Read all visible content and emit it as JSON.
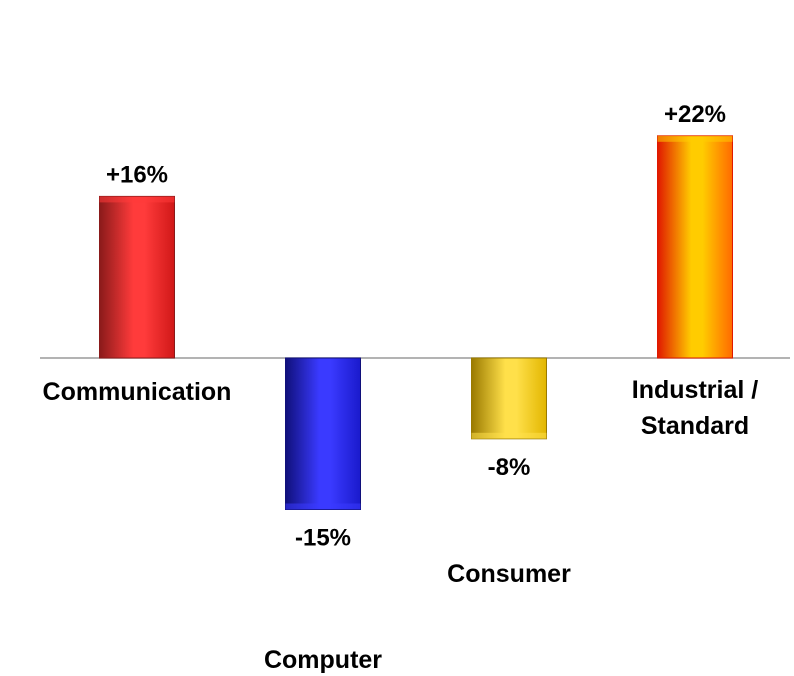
{
  "chart_data": {
    "type": "bar",
    "title": "",
    "xlabel": "",
    "ylabel": "",
    "grid": false,
    "legend": "none",
    "categories": [
      {
        "name": "Communication",
        "lines": [
          "Communication"
        ]
      },
      {
        "name": "Computer",
        "lines": [
          "Computer"
        ]
      },
      {
        "name": "Consumer",
        "lines": [
          "Consumer"
        ]
      },
      {
        "name": "Industrial / Standard",
        "lines": [
          "Industrial /",
          "Standard"
        ]
      }
    ],
    "values": [
      16,
      -15,
      -8,
      22
    ],
    "data_labels": [
      "+16%",
      "-15%",
      "-8%",
      "+22%"
    ],
    "units": "%",
    "ylim": [
      -15,
      22
    ],
    "colors": [
      {
        "light": "#ff3b3b",
        "mid": "#d01818",
        "dark": "#8a1a1a"
      },
      {
        "light": "#3a3aff",
        "mid": "#1a1acc",
        "dark": "#10107a"
      },
      {
        "light": "#ffe04a",
        "mid": "#e2b600",
        "dark": "#9a7a00"
      },
      {
        "light": "#ffcc00",
        "mid": "#ff6a00",
        "dark": "#e01800"
      }
    ]
  }
}
